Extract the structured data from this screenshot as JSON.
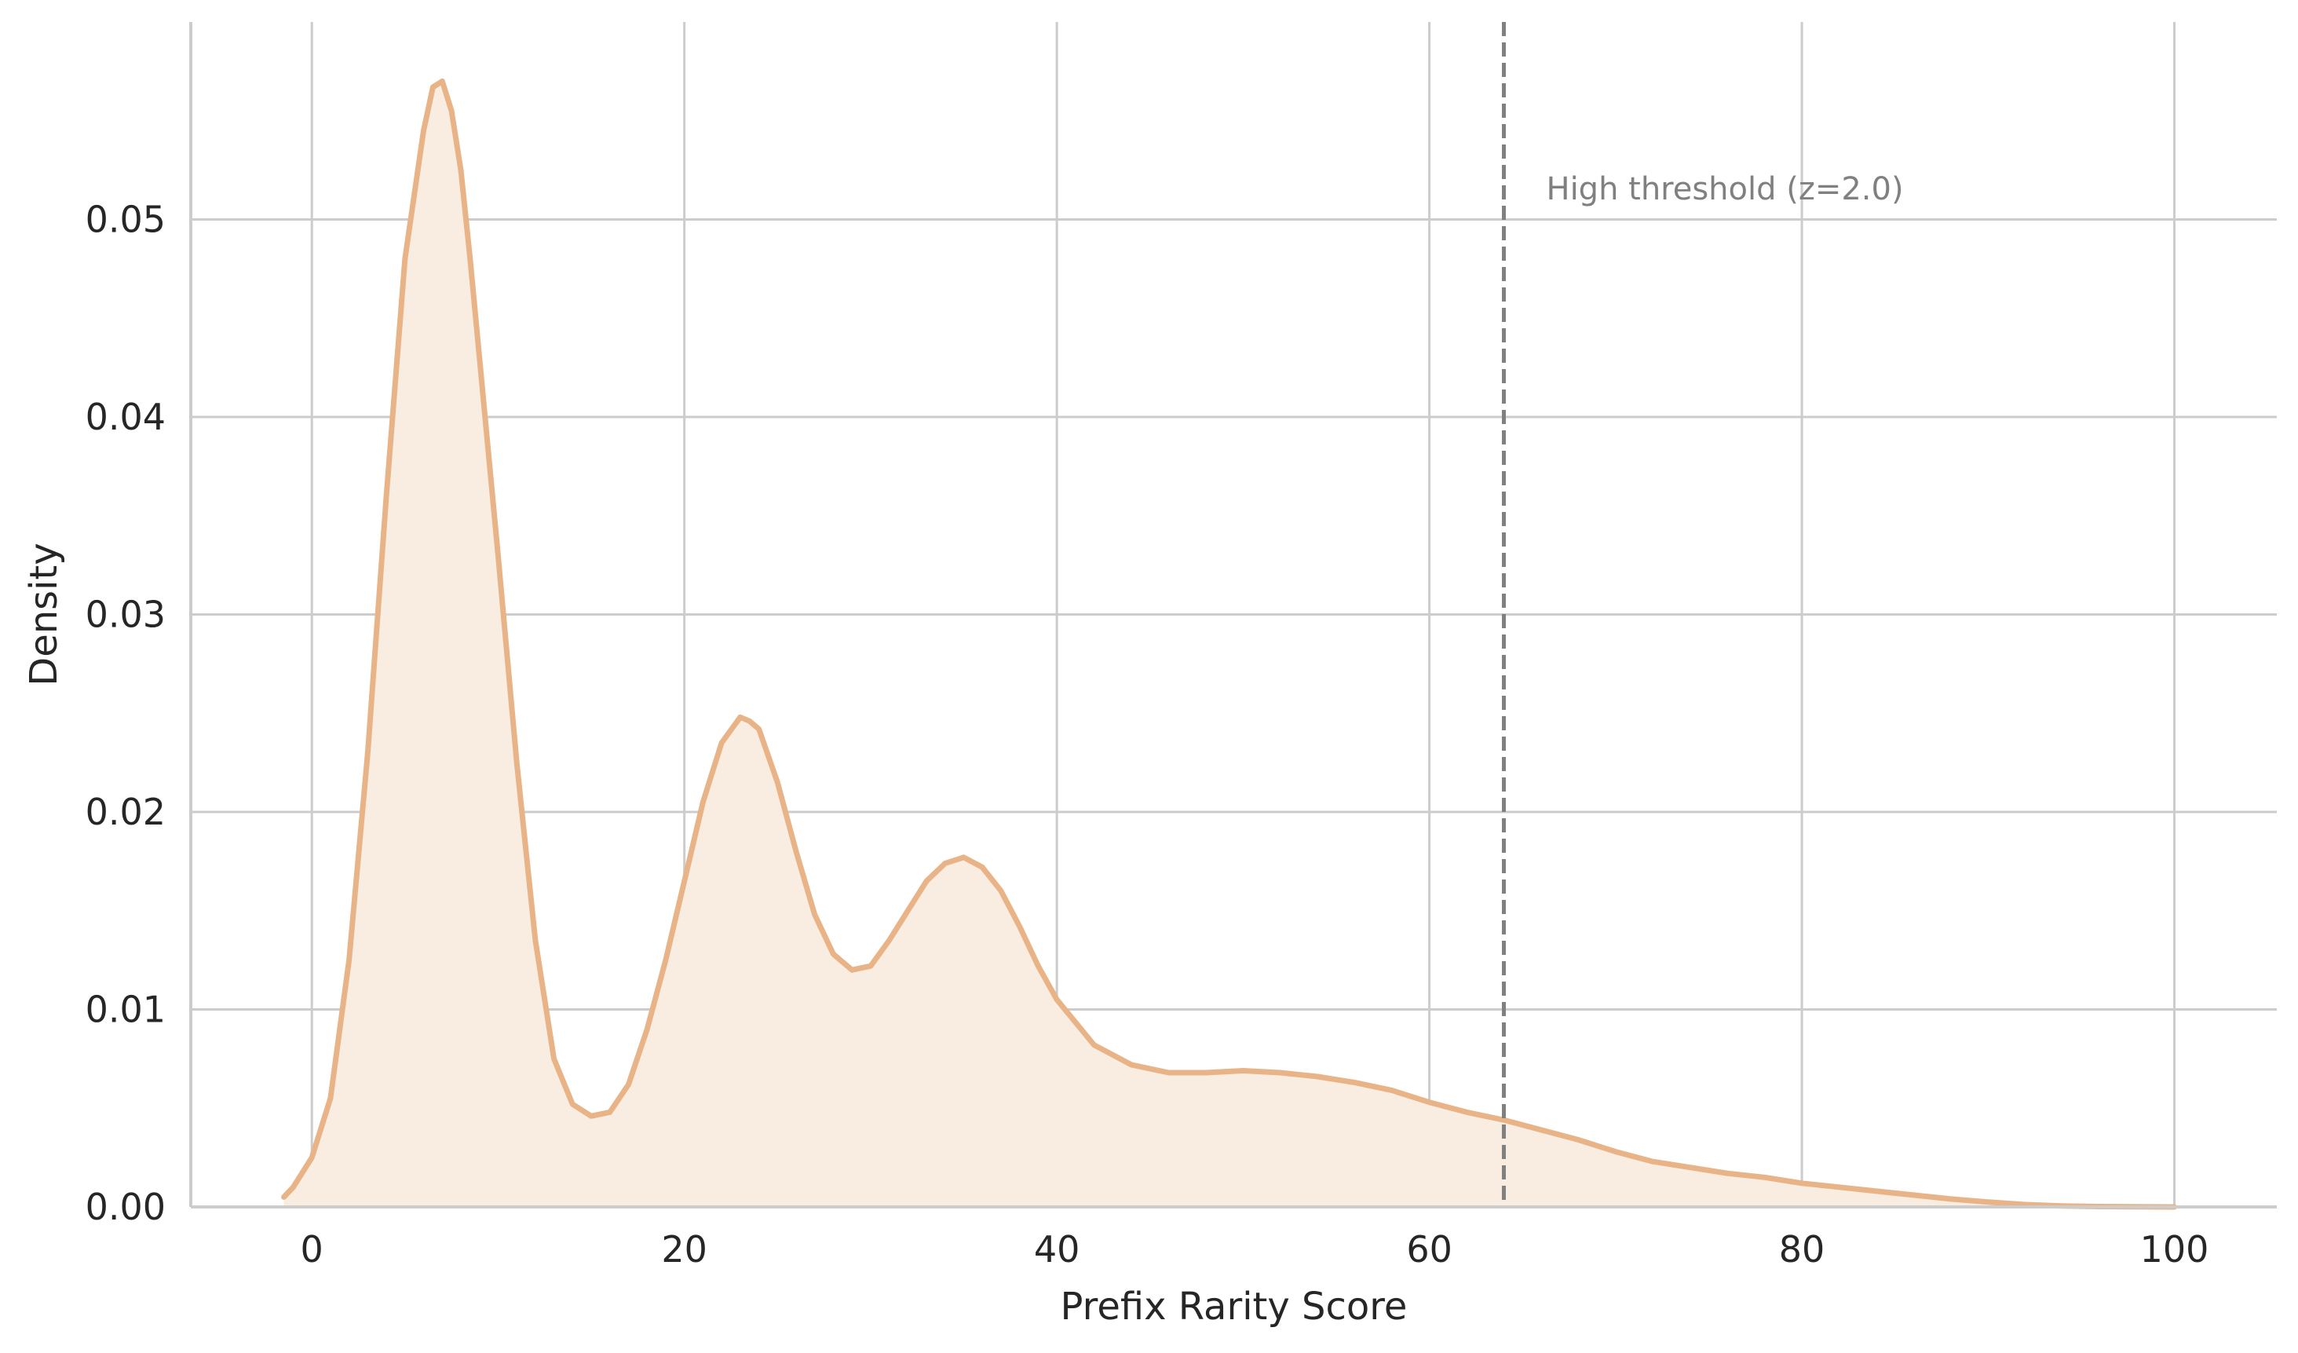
{
  "chart_data": {
    "type": "area",
    "xlabel": "Prefix Rarity Score",
    "ylabel": "Density",
    "xlim": [
      -6.5,
      105.5
    ],
    "ylim": [
      0,
      0.06
    ],
    "x_ticks": [
      0,
      20,
      40,
      60,
      80,
      100
    ],
    "x_tick_labels": [
      "0",
      "20",
      "40",
      "60",
      "80",
      "100"
    ],
    "y_ticks": [
      0.0,
      0.01,
      0.02,
      0.03,
      0.04,
      0.05
    ],
    "y_tick_labels": [
      "0.00",
      "0.01",
      "0.02",
      "0.03",
      "0.04",
      "0.05"
    ],
    "grid": true,
    "series": [
      {
        "color": "#e8b487",
        "fill_color": "#f9ece1",
        "x": [
          -1.5,
          -1,
          0,
          1,
          2,
          3,
          4,
          5,
          6,
          6.5,
          7,
          7.5,
          8,
          8.5,
          9,
          10,
          11,
          12,
          13,
          14,
          15,
          16,
          17,
          18,
          19,
          20,
          21,
          22,
          23,
          23.5,
          24,
          25,
          26,
          27,
          28,
          29,
          30,
          31,
          32,
          33,
          34,
          35,
          36,
          37,
          38,
          39,
          40,
          42,
          44,
          46,
          48,
          50,
          52,
          54,
          56,
          58,
          60,
          62,
          64,
          66,
          68,
          70,
          72,
          74,
          76,
          78,
          80,
          82,
          84,
          86,
          88,
          90,
          92,
          94,
          96,
          98,
          100
        ],
        "y": [
          0.0005,
          0.001,
          0.0025,
          0.0055,
          0.0125,
          0.023,
          0.036,
          0.048,
          0.0545,
          0.0567,
          0.057,
          0.0555,
          0.0525,
          0.048,
          0.043,
          0.033,
          0.0225,
          0.0135,
          0.0075,
          0.0052,
          0.0046,
          0.0048,
          0.0062,
          0.009,
          0.0125,
          0.0165,
          0.0205,
          0.0235,
          0.0248,
          0.0246,
          0.0242,
          0.0215,
          0.018,
          0.0148,
          0.0128,
          0.012,
          0.0122,
          0.0135,
          0.015,
          0.0165,
          0.0174,
          0.0177,
          0.0172,
          0.016,
          0.0142,
          0.0122,
          0.0105,
          0.0082,
          0.0072,
          0.0068,
          0.0068,
          0.0069,
          0.0068,
          0.0066,
          0.0063,
          0.0059,
          0.0053,
          0.0048,
          0.0044,
          0.0039,
          0.0034,
          0.0028,
          0.0023,
          0.002,
          0.0017,
          0.0015,
          0.0012,
          0.001,
          0.0008,
          0.0006,
          0.0004,
          0.00025,
          0.00012,
          5e-05,
          2e-05,
          1e-05,
          0.0
        ]
      }
    ],
    "annotations": [
      {
        "type": "vline",
        "x": 64,
        "style": "dashed",
        "color": "#808080",
        "text": "High threshold (z=2.0)",
        "text_color": "#808080"
      }
    ]
  }
}
